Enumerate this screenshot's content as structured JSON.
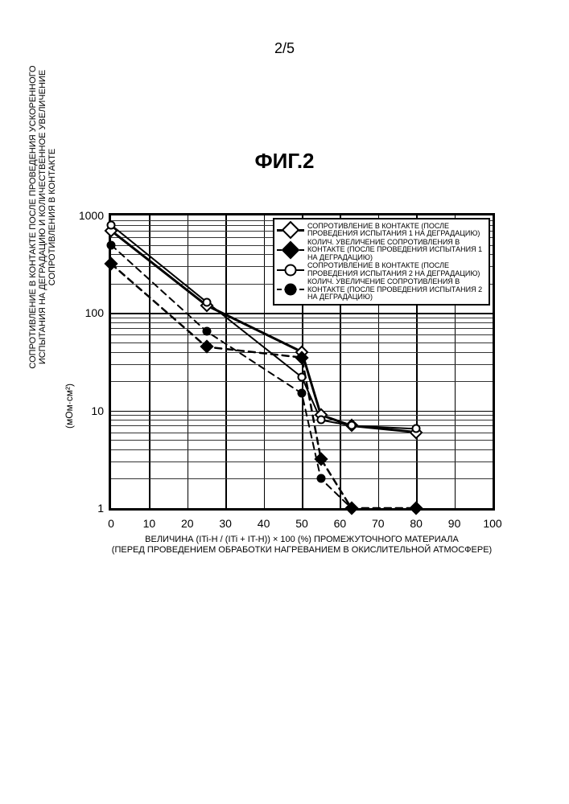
{
  "page_number": "2/5",
  "figure_title": "ФИГ.2",
  "y_axis_label": "СОПРОТИВЛЕНИЕ В КОНТАКТЕ ПОСЛЕ ПРОВЕДЕНИЯ УСКОРЕННОГО ИСПЫТАНИЯ НА ДЕГРАДАЦИЮ И КОЛИЧЕСТВЕННОЕ УВЕЛИЧЕНИЕ СОПРОТИВЛЕНИЯ В КОНТАКТЕ",
  "y_axis_unit": "(мОм·см²)",
  "x_axis_label_line1": "ВЕЛИЧИНА (ITi-H / (ITi + IT-H)) × 100 (%) ПРОМЕЖУТОЧНОГО МАТЕРИАЛА",
  "x_axis_label_line2": "(ПЕРЕД ПРОВЕДЕНИЕМ ОБРАБОТКИ НАГРЕВАНИЕМ В ОКИСЛИТЕЛЬНОЙ АТМОСФЕРЕ)",
  "chart": {
    "type": "line",
    "background_color": "#ffffff",
    "border_color": "#000000",
    "grid_color": "#000000",
    "x": {
      "min": 0,
      "max": 100,
      "tick_step": 10,
      "ticks": [
        0,
        10,
        20,
        30,
        40,
        50,
        60,
        70,
        80,
        90,
        100
      ]
    },
    "y": {
      "scale": "log",
      "min": 1,
      "max": 1000,
      "major_ticks": [
        1,
        10,
        100,
        1000
      ]
    },
    "legend_background": "#ffffff",
    "legend_border": "#000000",
    "series": [
      {
        "id": "contact1",
        "label": "СОПРОТИВЛЕНИЕ В КОНТАКТЕ (ПОСЛЕ ПРОВЕДЕНИЯ ИСПЫТАНИЯ 1 НА ДЕГРАДАЦИЮ)",
        "color": "#000000",
        "line_style": "solid",
        "line_width": 3.0,
        "marker": "diamond-open",
        "marker_size": 12,
        "marker_fill": "#ffffff",
        "data": [
          [
            0,
            700
          ],
          [
            25,
            120
          ],
          [
            50,
            40
          ],
          [
            55,
            9
          ],
          [
            63,
            7
          ],
          [
            80,
            6
          ]
        ]
      },
      {
        "id": "increase1",
        "label": "КОЛИЧ. УВЕЛИЧЕНИЕ СОПРОТИВЛЕНИЯ В КОНТАКТЕ (ПОСЛЕ ПРОВЕДЕНИЯ ИСПЫТАНИЯ 1 НА ДЕГРАДАЦИЮ)",
        "color": "#000000",
        "line_style": "dashed",
        "line_width": 2.5,
        "marker": "diamond-solid",
        "marker_size": 12,
        "marker_fill": "#000000",
        "data": [
          [
            0,
            320
          ],
          [
            25,
            45
          ],
          [
            50,
            35
          ],
          [
            55,
            3.2
          ],
          [
            63,
            1
          ],
          [
            80,
            1
          ]
        ]
      },
      {
        "id": "contact2",
        "label": "СОПРОТИВЛЕНИЕ В КОНТАКТЕ (ПОСЛЕ ПРОВЕДЕНИЯ ИСПЫТАНИЯ 2 НА ДЕГРАДАЦИЮ)",
        "color": "#000000",
        "line_style": "solid",
        "line_width": 2.0,
        "marker": "circle-open",
        "marker_size": 11,
        "marker_fill": "#ffffff",
        "data": [
          [
            0,
            800
          ],
          [
            25,
            130
          ],
          [
            50,
            22
          ],
          [
            55,
            8
          ],
          [
            63,
            7
          ],
          [
            80,
            6.5
          ]
        ]
      },
      {
        "id": "increase2",
        "label": "КОЛИЧ. УВЕЛИЧЕНИЕ СОПРОТИВЛЕНИЯ В КОНТАКТЕ (ПОСЛЕ ПРОВЕДЕНИЯ ИСПЫТАНИЯ 2 НА ДЕГРАДАЦИЮ)",
        "color": "#000000",
        "line_style": "dashed",
        "line_width": 2.0,
        "marker": "circle-solid",
        "marker_size": 11,
        "marker_fill": "#000000",
        "data": [
          [
            0,
            500
          ],
          [
            25,
            65
          ],
          [
            50,
            15
          ],
          [
            55,
            2
          ],
          [
            63,
            1
          ],
          [
            80,
            1
          ]
        ]
      }
    ]
  }
}
